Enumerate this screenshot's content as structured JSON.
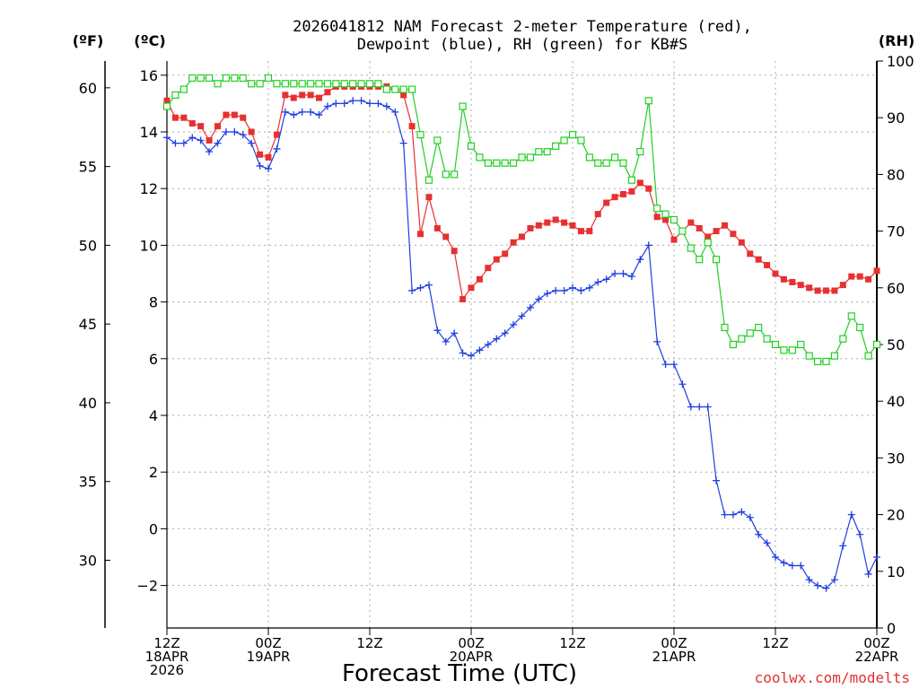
{
  "chart_data": {
    "type": "line",
    "title": "2026041812 NAM Forecast 2-meter Temperature (red),",
    "subtitle": "Dewpoint (blue), RH (green) for KB#S",
    "units": {
      "fahrenheit": "(ºF)",
      "celsius": "(ºC)",
      "rh": "(RH)"
    },
    "xlabel": "Forecast Time (UTC)",
    "credit": "coolwx.com/modelts",
    "x_hours": [
      0,
      84
    ],
    "x_ticks": [
      {
        "hour": 0,
        "lines": [
          "12Z",
          "18APR",
          "2026"
        ]
      },
      {
        "hour": 12,
        "lines": [
          "00Z",
          "19APR"
        ]
      },
      {
        "hour": 24,
        "lines": [
          "12Z"
        ]
      },
      {
        "hour": 36,
        "lines": [
          "00Z",
          "20APR"
        ]
      },
      {
        "hour": 48,
        "lines": [
          "12Z"
        ]
      },
      {
        "hour": 60,
        "lines": [
          "00Z",
          "21APR"
        ]
      },
      {
        "hour": 72,
        "lines": [
          "12Z"
        ]
      },
      {
        "hour": 84,
        "lines": [
          "00Z",
          "22APR"
        ]
      }
    ],
    "ylim_celsius": [
      -3.5,
      16.5
    ],
    "y_ticks_celsius": [
      "16",
      "14",
      "12",
      "10",
      "8",
      "6",
      "4",
      "2",
      "0",
      "−2"
    ],
    "y_ticks_fahrenheit": [
      "60",
      "55",
      "50",
      "45",
      "40",
      "35",
      "30"
    ],
    "ylim_rh": [
      0,
      100
    ],
    "y_ticks_rh": [
      "100",
      "90",
      "80",
      "70",
      "60",
      "50",
      "40",
      "30",
      "20",
      "10",
      "0"
    ],
    "grid": true,
    "series": [
      {
        "name": "Temperature",
        "color": "#e83030",
        "marker": "square-filled",
        "x": [
          0,
          1,
          2,
          3,
          4,
          5,
          6,
          7,
          8,
          9,
          10,
          11,
          12,
          13,
          14,
          15,
          16,
          17,
          18,
          19,
          20,
          21,
          22,
          23,
          24,
          25,
          26,
          27,
          28,
          29,
          30,
          31,
          32,
          33,
          34,
          35,
          36,
          37,
          38,
          39,
          40,
          41,
          42,
          43,
          44,
          45,
          46,
          47,
          48,
          49,
          50,
          51,
          52,
          53,
          54,
          55,
          56,
          57,
          58,
          59,
          60,
          61,
          62,
          63,
          64,
          65,
          66,
          67,
          68,
          69,
          70,
          71,
          72,
          73,
          74,
          75,
          76,
          77,
          78,
          79,
          80,
          81,
          82,
          83,
          84
        ],
        "values": [
          15.1,
          14.5,
          14.5,
          14.3,
          14.2,
          13.7,
          14.2,
          14.6,
          14.6,
          14.5,
          14.0,
          13.2,
          13.1,
          13.9,
          15.3,
          15.2,
          15.3,
          15.3,
          15.2,
          15.4,
          15.6,
          15.6,
          15.6,
          15.6,
          15.6,
          15.6,
          15.6,
          15.5,
          15.3,
          14.2,
          10.4,
          11.7,
          10.6,
          10.3,
          9.8,
          8.1,
          8.5,
          8.8,
          9.2,
          9.5,
          9.7,
          10.1,
          10.3,
          10.6,
          10.7,
          10.8,
          10.9,
          10.8,
          10.7,
          10.5,
          10.5,
          11.1,
          11.5,
          11.7,
          11.8,
          11.9,
          12.2,
          12.0,
          11.0,
          10.9,
          10.2,
          10.5,
          10.8,
          10.6,
          10.3,
          10.5,
          10.7,
          10.4,
          10.1,
          9.7,
          9.5,
          9.3,
          9.0,
          8.8,
          8.7,
          8.6,
          8.5,
          8.4,
          8.4,
          8.4,
          8.6,
          8.9,
          8.9,
          8.8,
          9.1
        ]
      },
      {
        "name": "Dewpoint",
        "color": "#2040e0",
        "marker": "plus",
        "x": [
          0,
          1,
          2,
          3,
          4,
          5,
          6,
          7,
          8,
          9,
          10,
          11,
          12,
          13,
          14,
          15,
          16,
          17,
          18,
          19,
          20,
          21,
          22,
          23,
          24,
          25,
          26,
          27,
          28,
          29,
          30,
          31,
          32,
          33,
          34,
          35,
          36,
          37,
          38,
          39,
          40,
          41,
          42,
          43,
          44,
          45,
          46,
          47,
          48,
          49,
          50,
          51,
          52,
          53,
          54,
          55,
          56,
          57,
          58,
          59,
          60,
          61,
          62,
          63,
          64,
          65,
          66,
          67,
          68,
          69,
          70,
          71,
          72,
          73,
          74,
          75,
          76,
          77,
          78,
          79,
          80,
          81,
          82,
          83,
          84
        ],
        "values": [
          13.8,
          13.6,
          13.6,
          13.8,
          13.7,
          13.3,
          13.6,
          14.0,
          14.0,
          13.9,
          13.6,
          12.8,
          12.7,
          13.4,
          14.7,
          14.6,
          14.7,
          14.7,
          14.6,
          14.9,
          15.0,
          15.0,
          15.1,
          15.1,
          15.0,
          15.0,
          14.9,
          14.7,
          13.6,
          8.4,
          8.5,
          8.6,
          7.0,
          6.6,
          6.9,
          6.2,
          6.1,
          6.3,
          6.5,
          6.7,
          6.9,
          7.2,
          7.5,
          7.8,
          8.1,
          8.3,
          8.4,
          8.4,
          8.5,
          8.4,
          8.5,
          8.7,
          8.8,
          9.0,
          9.0,
          8.9,
          9.5,
          10.0,
          6.6,
          5.8,
          5.8,
          5.1,
          4.3,
          4.3,
          4.3,
          1.7,
          0.5,
          0.5,
          0.6,
          0.4,
          -0.2,
          -0.5,
          -1.0,
          -1.2,
          -1.3,
          -1.3,
          -1.8,
          -2.0,
          -2.1,
          -1.8,
          -0.6,
          0.5,
          -0.2,
          -1.6,
          -1.0
        ]
      },
      {
        "name": "RH",
        "color": "#20d020",
        "marker": "square-open",
        "x": [
          0,
          1,
          2,
          3,
          4,
          5,
          6,
          7,
          8,
          9,
          10,
          11,
          12,
          13,
          14,
          15,
          16,
          17,
          18,
          19,
          20,
          21,
          22,
          23,
          24,
          25,
          26,
          27,
          28,
          29,
          30,
          31,
          32,
          33,
          34,
          35,
          36,
          37,
          38,
          39,
          40,
          41,
          42,
          43,
          44,
          45,
          46,
          47,
          48,
          49,
          50,
          51,
          52,
          53,
          54,
          55,
          56,
          57,
          58,
          59,
          60,
          61,
          62,
          63,
          64,
          65,
          66,
          67,
          68,
          69,
          70,
          71,
          72,
          73,
          74,
          75,
          76,
          77,
          78,
          79,
          80,
          81,
          82,
          83,
          84
        ],
        "values": [
          92,
          94,
          95,
          97,
          97,
          97,
          96,
          97,
          97,
          97,
          96,
          96,
          97,
          96,
          96,
          96,
          96,
          96,
          96,
          96,
          96,
          96,
          96,
          96,
          96,
          96,
          95,
          95,
          95,
          95,
          87,
          79,
          86,
          80,
          80,
          92,
          85,
          83,
          82,
          82,
          82,
          82,
          83,
          83,
          84,
          84,
          85,
          86,
          87,
          86,
          83,
          82,
          82,
          83,
          82,
          79,
          84,
          93,
          74,
          73,
          72,
          70,
          67,
          65,
          68,
          65,
          53,
          50,
          51,
          52,
          53,
          51,
          50,
          49,
          49,
          50,
          48,
          47,
          47,
          48,
          51,
          55,
          53,
          48,
          50
        ]
      }
    ]
  }
}
